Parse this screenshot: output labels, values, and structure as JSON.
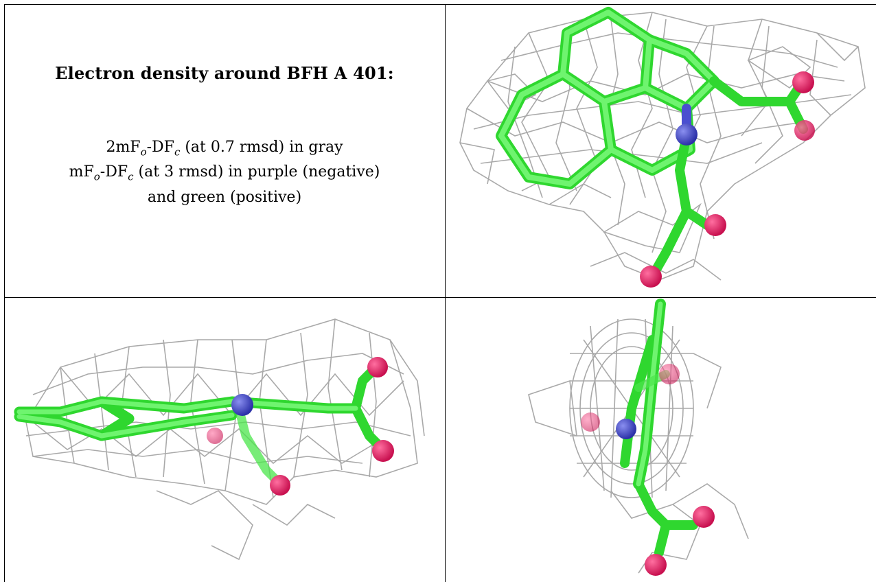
{
  "title": "Electron density around BFH A 401:",
  "legend": {
    "line1_pre": "2mF",
    "line1_sub1": "o",
    "line1_mid": "-DF",
    "line1_sub2": "c",
    "line1_post": " (at 0.7 rmsd) in gray",
    "line2_pre": "mF",
    "line2_sub1": "o",
    "line2_mid": "-DF",
    "line2_sub2": "c",
    "line2_post": " (at 3 rmsd) in purple (negative)",
    "line3": "and green (positive)"
  },
  "colors": {
    "mesh": "#a9a9a9",
    "carbon": "#3fef3f",
    "nitrogen": "#4a4fd0",
    "oxygen": "#e4206a",
    "border": "#000000"
  },
  "views": [
    "top-view",
    "side-view",
    "end-view"
  ]
}
